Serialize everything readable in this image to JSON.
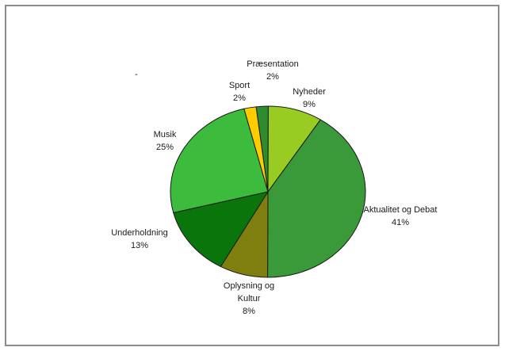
{
  "chart_data": {
    "type": "pie",
    "title": "",
    "slices": [
      {
        "label": [
          "Præsentation"
        ],
        "percent_label": "2%",
        "value": 2,
        "color": "#2e8b2e"
      },
      {
        "label": [
          "Nyheder"
        ],
        "percent_label": "9%",
        "value": 9,
        "color": "#99cc22"
      },
      {
        "label": [
          "Aktualitet og Debat"
        ],
        "percent_label": "41%",
        "value": 41,
        "color": "#3a9a3a"
      },
      {
        "label": [
          "Oplysning og",
          "Kultur"
        ],
        "percent_label": "8%",
        "value": 8,
        "color": "#7f7f10"
      },
      {
        "label": [
          "Underholdning"
        ],
        "percent_label": "13%",
        "value": 13,
        "color": "#0a750a"
      },
      {
        "label": [
          "Musik"
        ],
        "percent_label": "25%",
        "value": 25,
        "color": "#3dbb3d"
      },
      {
        "label": [
          "Sport"
        ],
        "percent_label": "2%",
        "value": 2,
        "color": "#ffcc00"
      }
    ],
    "stray_mark": "-"
  }
}
